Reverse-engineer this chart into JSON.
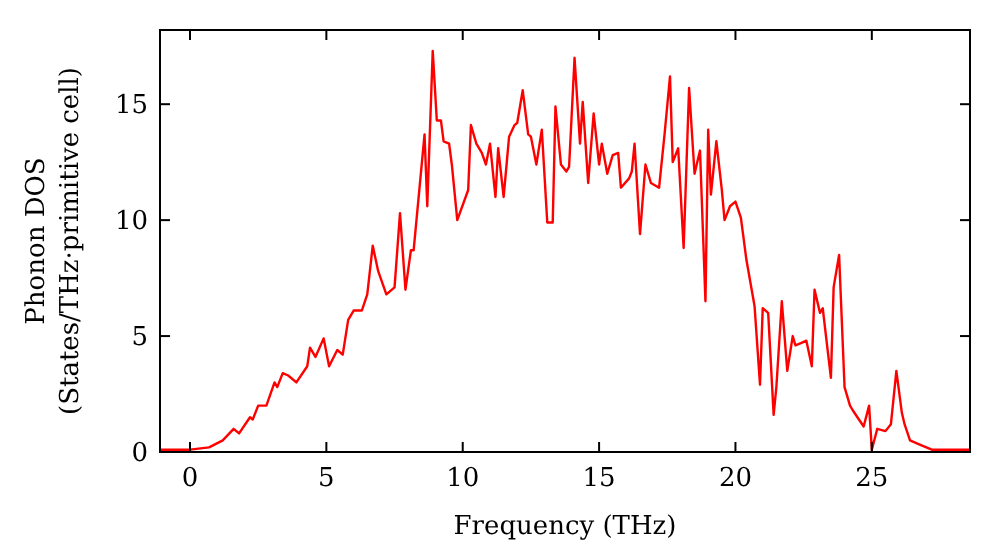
{
  "chart_data": {
    "type": "line",
    "xlabel": "Frequency (THz)",
    "ylabel": "Phonon DOS\n(States/THz·primitive cell)",
    "xlim": [
      -1.1,
      28.6
    ],
    "ylim": [
      0,
      18.2
    ],
    "xticks": [
      0,
      5,
      10,
      15,
      20,
      25
    ],
    "yticks": [
      0,
      5,
      10,
      15
    ],
    "grid": false,
    "marker": "none",
    "line_style": "solid",
    "series": [
      {
        "color": "#ff0000",
        "x": [
          -1.1,
          0,
          0.7,
          1.2,
          1.6,
          1.8,
          2.2,
          2.3,
          2.5,
          2.8,
          3.1,
          3.2,
          3.4,
          3.6,
          3.9,
          4.3,
          4.4,
          4.6,
          4.9,
          5.1,
          5.4,
          5.6,
          5.8,
          6.0,
          6.3,
          6.5,
          6.7,
          6.9,
          7.2,
          7.5,
          7.7,
          7.9,
          8.1,
          8.2,
          8.6,
          8.7,
          8.9,
          9.05,
          9.2,
          9.3,
          9.5,
          9.6,
          9.8,
          10.2,
          10.3,
          10.5,
          10.7,
          10.85,
          11.0,
          11.2,
          11.3,
          11.5,
          11.7,
          11.9,
          12.0,
          12.2,
          12.4,
          12.5,
          12.7,
          12.9,
          13.1,
          13.3,
          13.4,
          13.6,
          13.8,
          13.9,
          14.1,
          14.3,
          14.4,
          14.6,
          14.8,
          15.0,
          15.1,
          15.3,
          15.5,
          15.7,
          15.8,
          16.1,
          16.2,
          16.3,
          16.5,
          16.7,
          16.9,
          17.2,
          17.4,
          17.6,
          17.7,
          17.9,
          18.1,
          18.3,
          18.5,
          18.7,
          18.9,
          19.0,
          19.1,
          19.3,
          19.5,
          19.6,
          19.8,
          20.0,
          20.2,
          20.4,
          20.7,
          20.9,
          21.0,
          21.2,
          21.4,
          21.5,
          21.7,
          21.9,
          22.1,
          22.2,
          22.4,
          22.6,
          22.8,
          22.9,
          23.1,
          23.2,
          23.5,
          23.6,
          23.8,
          24.0,
          24.2,
          24.3,
          24.7,
          24.9,
          25.0,
          25.2,
          25.5,
          25.7,
          25.9,
          26.1,
          26.2,
          26.4,
          26.8,
          27.2,
          28.6
        ],
        "values": [
          0.1,
          0.1,
          0.2,
          0.5,
          1.0,
          0.8,
          1.5,
          1.4,
          2.0,
          2.0,
          3.0,
          2.8,
          3.4,
          3.3,
          3.0,
          3.7,
          4.5,
          4.1,
          4.9,
          3.7,
          4.4,
          4.2,
          5.7,
          6.1,
          6.1,
          6.8,
          8.9,
          7.8,
          6.8,
          7.1,
          10.3,
          7.0,
          8.7,
          8.7,
          13.7,
          10.6,
          17.3,
          14.3,
          14.3,
          13.4,
          13.3,
          12.4,
          10.0,
          11.3,
          14.1,
          13.3,
          12.9,
          12.4,
          13.3,
          11.0,
          13.1,
          11.0,
          13.6,
          14.1,
          14.2,
          15.6,
          13.7,
          13.6,
          12.4,
          13.9,
          9.9,
          9.9,
          14.9,
          12.4,
          12.1,
          12.3,
          17.0,
          13.3,
          15.1,
          11.6,
          14.6,
          12.4,
          13.3,
          12.0,
          12.8,
          12.9,
          11.4,
          11.8,
          12.1,
          13.3,
          9.4,
          12.4,
          11.6,
          11.4,
          13.7,
          16.2,
          12.5,
          13.1,
          8.8,
          15.7,
          12.0,
          13.0,
          6.5,
          13.9,
          11.1,
          13.4,
          11.3,
          10.0,
          10.6,
          10.8,
          10.1,
          8.3,
          6.3,
          2.9,
          6.2,
          6.0,
          1.6,
          2.8,
          6.5,
          3.5,
          5.0,
          4.6,
          4.7,
          4.8,
          3.7,
          7.0,
          6.0,
          6.2,
          3.2,
          7.1,
          8.5,
          2.8,
          2.0,
          1.8,
          1.1,
          2.0,
          0.1,
          1.0,
          0.9,
          1.2,
          3.5,
          1.7,
          1.2,
          0.5,
          0.3,
          0.1,
          0.1
        ]
      }
    ]
  }
}
